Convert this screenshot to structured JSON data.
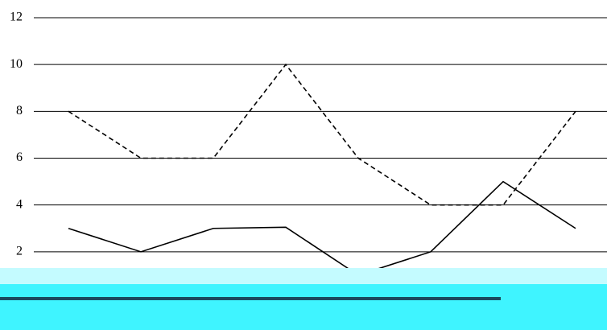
{
  "chart_data": {
    "type": "line",
    "categories": [
      null,
      null,
      null,
      null,
      null,
      null,
      null,
      null
    ],
    "series": [
      {
        "color": "#000000",
        "line_style": "dashed",
        "values": [
          8,
          6,
          6,
          10,
          6,
          4,
          4,
          8
        ]
      },
      {
        "color": "#000000",
        "line_style": "solid",
        "values": [
          3,
          2,
          3,
          3.05,
          1,
          2,
          5,
          3
        ]
      }
    ],
    "ylim": [
      0,
      12
    ],
    "yticks": [
      2,
      4,
      6,
      8,
      10,
      12
    ],
    "grid": true
  }
}
